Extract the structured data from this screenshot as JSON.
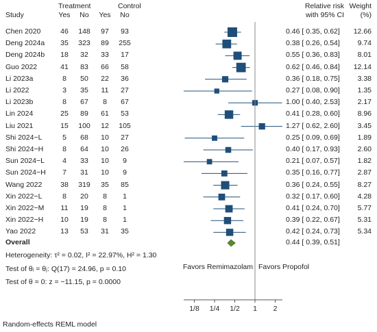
{
  "header": {
    "study": "Study",
    "treatment": "Treatment",
    "control": "Control",
    "yes": "Yes",
    "no": "No",
    "effect_line1": "Relative risk",
    "effect_line2": "with 95% CI",
    "weight_line1": "Weight",
    "weight_line2": "(%)"
  },
  "chart_data": {
    "type": "forest",
    "x_scale": "log",
    "xlim": [
      0.1,
      2.8
    ],
    "null_line": 1,
    "xticks": [
      0.125,
      0.25,
      0.5,
      1,
      2
    ],
    "xtick_labels": [
      "1/8",
      "1/4",
      "1/2",
      "1",
      "2"
    ],
    "favors_left": "Favors Remimazolam",
    "favors_right": "Favors Propofol",
    "studies": [
      {
        "name": "Chen 2020",
        "t_yes": "46",
        "t_no": "148",
        "c_yes": "97",
        "c_no": "93",
        "rr": 0.46,
        "lo": 0.35,
        "hi": 0.62,
        "ci_text": "0.46 [ 0.35, 0.62]",
        "weight": "12.66"
      },
      {
        "name": "Deng 2024a",
        "t_yes": "35",
        "t_no": "323",
        "c_yes": "89",
        "c_no": "255",
        "rr": 0.38,
        "lo": 0.26,
        "hi": 0.54,
        "ci_text": "0.38 [ 0.26, 0.54]",
        "weight": "9.74"
      },
      {
        "name": "Deng 2024b",
        "t_yes": "18",
        "t_no": "32",
        "c_yes": "33",
        "c_no": "17",
        "rr": 0.55,
        "lo": 0.36,
        "hi": 0.83,
        "ci_text": "0.55 [ 0.36, 0.83]",
        "weight": "8.01"
      },
      {
        "name": "Guo 2022",
        "t_yes": "41",
        "t_no": "83",
        "c_yes": "66",
        "c_no": "58",
        "rr": 0.62,
        "lo": 0.46,
        "hi": 0.84,
        "ci_text": "0.62 [ 0.46, 0.84]",
        "weight": "12.14"
      },
      {
        "name": "Li 2023a",
        "t_yes": "8",
        "t_no": "50",
        "c_yes": "22",
        "c_no": "36",
        "rr": 0.36,
        "lo": 0.18,
        "hi": 0.75,
        "ci_text": "0.36 [ 0.18, 0.75]",
        "weight": "3.38"
      },
      {
        "name": "Li 2022",
        "t_yes": "3",
        "t_no": "35",
        "c_yes": "11",
        "c_no": "27",
        "rr": 0.27,
        "lo": 0.08,
        "hi": 0.9,
        "ci_text": "0.27 [ 0.08, 0.90]",
        "weight": "1.35"
      },
      {
        "name": "Li 2023b",
        "t_yes": "8",
        "t_no": "67",
        "c_yes": "8",
        "c_no": "67",
        "rr": 1.0,
        "lo": 0.4,
        "hi": 2.53,
        "ci_text": "1.00 [ 0.40, 2.53]",
        "weight": "2.17"
      },
      {
        "name": "Lin 2024",
        "t_yes": "25",
        "t_no": "89",
        "c_yes": "61",
        "c_no": "53",
        "rr": 0.41,
        "lo": 0.28,
        "hi": 0.6,
        "ci_text": "0.41 [ 0.28, 0.60]",
        "weight": "8.96"
      },
      {
        "name": "Liu 2021",
        "t_yes": "15",
        "t_no": "100",
        "c_yes": "12",
        "c_no": "105",
        "rr": 1.27,
        "lo": 0.62,
        "hi": 2.6,
        "ci_text": "1.27 [ 0.62, 2.60]",
        "weight": "3.45"
      },
      {
        "name": "Shi 2024−L",
        "t_yes": "5",
        "t_no": "68",
        "c_yes": "10",
        "c_no": "27",
        "rr": 0.25,
        "lo": 0.09,
        "hi": 0.69,
        "ci_text": "0.25 [ 0.09, 0.69]",
        "weight": "1.89"
      },
      {
        "name": "Shi 2024−H",
        "t_yes": "8",
        "t_no": "64",
        "c_yes": "10",
        "c_no": "26",
        "rr": 0.4,
        "lo": 0.17,
        "hi": 0.93,
        "ci_text": "0.40 [ 0.17, 0.93]",
        "weight": "2.60"
      },
      {
        "name": "Sun 2024−L",
        "t_yes": "4",
        "t_no": "33",
        "c_yes": "10",
        "c_no": "9",
        "rr": 0.21,
        "lo": 0.07,
        "hi": 0.57,
        "ci_text": "0.21 [ 0.07, 0.57]",
        "weight": "1.82"
      },
      {
        "name": "Sun 2024−H",
        "t_yes": "7",
        "t_no": "31",
        "c_yes": "10",
        "c_no": "9",
        "rr": 0.35,
        "lo": 0.16,
        "hi": 0.77,
        "ci_text": "0.35 [ 0.16, 0.77]",
        "weight": "2.87"
      },
      {
        "name": "Wang 2022",
        "t_yes": "38",
        "t_no": "319",
        "c_yes": "35",
        "c_no": "85",
        "rr": 0.36,
        "lo": 0.24,
        "hi": 0.55,
        "ci_text": "0.36 [ 0.24, 0.55]",
        "weight": "8.27"
      },
      {
        "name": "Xin 2022−L",
        "t_yes": "8",
        "t_no": "20",
        "c_yes": "8",
        "c_no": "1",
        "rr": 0.32,
        "lo": 0.17,
        "hi": 0.6,
        "ci_text": "0.32 [ 0.17, 0.60]",
        "weight": "4.28"
      },
      {
        "name": "Xin 2022−M",
        "t_yes": "11",
        "t_no": "19",
        "c_yes": "8",
        "c_no": "1",
        "rr": 0.41,
        "lo": 0.24,
        "hi": 0.7,
        "ci_text": "0.41 [ 0.24, 0.70]",
        "weight": "5.77"
      },
      {
        "name": "Xin 2022−H",
        "t_yes": "10",
        "t_no": "19",
        "c_yes": "8",
        "c_no": "1",
        "rr": 0.39,
        "lo": 0.22,
        "hi": 0.67,
        "ci_text": "0.39 [ 0.22, 0.67]",
        "weight": "5.31"
      },
      {
        "name": "Yao 2022",
        "t_yes": "13",
        "t_no": "53",
        "c_yes": "31",
        "c_no": "35",
        "rr": 0.42,
        "lo": 0.24,
        "hi": 0.73,
        "ci_text": "0.42 [ 0.24, 0.73]",
        "weight": "5.34"
      }
    ],
    "overall": {
      "name": "Overall",
      "rr": 0.44,
      "lo": 0.39,
      "hi": 0.51,
      "ci_text": "0.44 [ 0.39, 0.51]"
    },
    "colors": {
      "marker": "#1f4e79",
      "diamond": "#5a8a2e",
      "line": "#555555"
    }
  },
  "stats": {
    "heterogeneity": "Heterogeneity: τ² = 0.02, I² = 22.97%, H² = 1.30",
    "test_theta_i": "Test of θᵢ = θⱼ: Q(17) = 24.96, p = 0.10",
    "test_theta_0": "Test of θ = 0: z = −11.15, p = 0.0000"
  },
  "footnote": "Random-effects REML model"
}
